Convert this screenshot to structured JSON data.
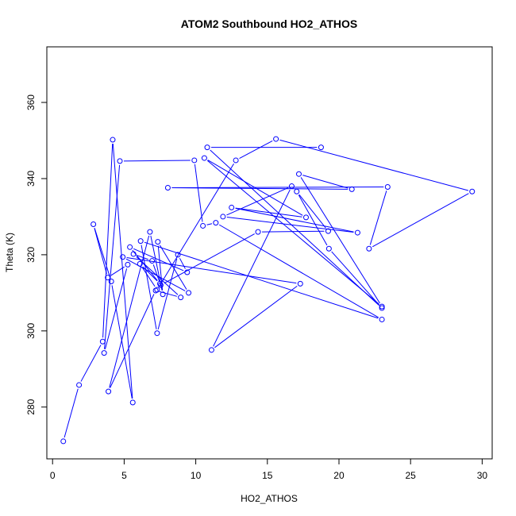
{
  "chart_data": {
    "type": "line",
    "title": "ATOM2 Southbound HO2_ATHOS",
    "xlabel": "HO2_ATHOS",
    "ylabel": "Theta (K)",
    "xlim": [
      -0.4,
      30.7
    ],
    "ylim": [
      266.4,
      374.6
    ],
    "x_ticks": [
      0,
      5,
      10,
      15,
      20,
      25,
      30
    ],
    "y_ticks": [
      280,
      300,
      320,
      340,
      360
    ],
    "grid": false,
    "legend": "none",
    "markers": "open-circle",
    "series": [
      {
        "color": "#0000ff",
        "points": [
          [
            0.75,
            271.0
          ],
          [
            1.85,
            285.8
          ],
          [
            3.5,
            297.2
          ],
          [
            4.2,
            350.2
          ],
          [
            5.6,
            281.2
          ],
          [
            4.1,
            313.0
          ],
          [
            2.85,
            328.0
          ],
          [
            3.85,
            314.0
          ],
          [
            5.25,
            317.4
          ],
          [
            3.6,
            294.2
          ],
          [
            4.7,
            344.6
          ],
          [
            9.9,
            344.8
          ],
          [
            10.5,
            327.6
          ],
          [
            11.4,
            328.4
          ],
          [
            23.0,
            303.0
          ],
          [
            6.15,
            323.6
          ],
          [
            7.3,
            299.4
          ],
          [
            8.75,
            320.0
          ],
          [
            9.4,
            315.4
          ],
          [
            5.4,
            322.0
          ],
          [
            7.5,
            312.4
          ],
          [
            6.1,
            317.6
          ],
          [
            7.3,
            310.8
          ],
          [
            12.8,
            344.8
          ],
          [
            15.6,
            350.4
          ],
          [
            29.3,
            336.6
          ],
          [
            22.1,
            321.6
          ],
          [
            23.4,
            337.8
          ],
          [
            8.05,
            337.6
          ],
          [
            20.9,
            337.2
          ],
          [
            17.2,
            341.2
          ],
          [
            23.0,
            306.4
          ],
          [
            10.6,
            345.4
          ],
          [
            17.7,
            329.8
          ],
          [
            12.5,
            332.4
          ],
          [
            21.3,
            325.8
          ],
          [
            11.9,
            330.0
          ],
          [
            16.7,
            338.0
          ],
          [
            11.1,
            295.0
          ],
          [
            17.3,
            312.4
          ],
          [
            4.9,
            319.4
          ],
          [
            9.5,
            310.0
          ],
          [
            7.35,
            323.4
          ],
          [
            7.7,
            309.6
          ],
          [
            6.8,
            326.0
          ],
          [
            3.9,
            284.1
          ],
          [
            7.2,
            310.6
          ],
          [
            8.95,
            308.8
          ],
          [
            5.65,
            320.2
          ],
          [
            6.95,
            318.4
          ],
          [
            7.55,
            312.0
          ],
          [
            14.35,
            326.0
          ],
          [
            19.25,
            326.2
          ],
          [
            17.05,
            336.6
          ],
          [
            19.3,
            321.6
          ],
          [
            23.0,
            306.0
          ],
          [
            10.8,
            348.2
          ],
          [
            18.75,
            348.2
          ]
        ]
      }
    ]
  }
}
